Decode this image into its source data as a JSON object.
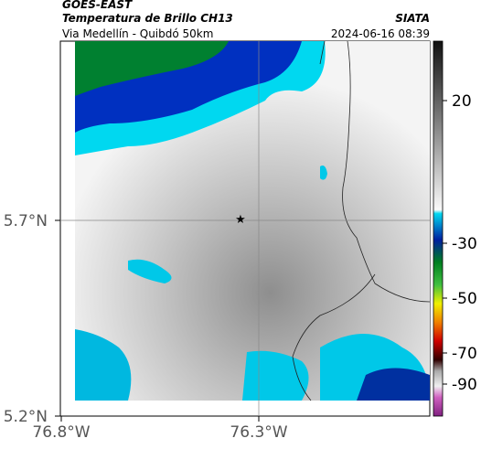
{
  "header": {
    "title": "GOES-EAST",
    "subtitle": "Temperatura de Brillo CH13",
    "location": "Via Medellín - Quibdó 50km",
    "source": "SIATA",
    "datetime": "2024-06-16 08:39"
  },
  "axes": {
    "lat_labels": [
      "5.7°N",
      "5.2°N"
    ],
    "lon_labels": [
      "76.8°W",
      "76.3°W"
    ]
  },
  "colorbar": {
    "ticks": [
      20,
      -30,
      -50,
      -70,
      -90
    ]
  }
}
